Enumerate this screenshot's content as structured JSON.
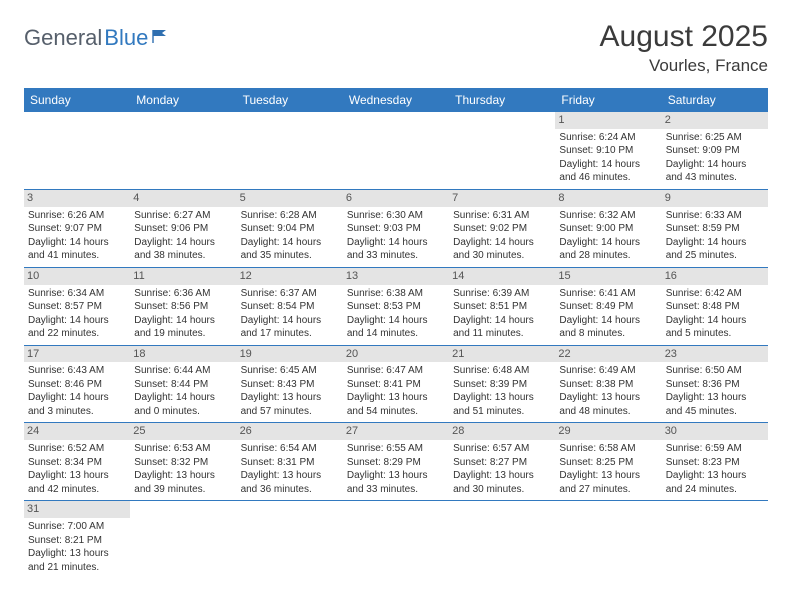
{
  "logo": {
    "general": "General",
    "blue": "Blue"
  },
  "title": "August 2025",
  "location": "Vourles, France",
  "colors": {
    "header_bg": "#3279bf",
    "header_text": "#ffffff",
    "daynum_bg": "#e4e4e4",
    "border": "#3279bf"
  },
  "weekdays": [
    "Sunday",
    "Monday",
    "Tuesday",
    "Wednesday",
    "Thursday",
    "Friday",
    "Saturday"
  ],
  "weeks": [
    [
      null,
      null,
      null,
      null,
      null,
      {
        "n": "1",
        "sr": "Sunrise: 6:24 AM",
        "ss": "Sunset: 9:10 PM",
        "d1": "Daylight: 14 hours",
        "d2": "and 46 minutes."
      },
      {
        "n": "2",
        "sr": "Sunrise: 6:25 AM",
        "ss": "Sunset: 9:09 PM",
        "d1": "Daylight: 14 hours",
        "d2": "and 43 minutes."
      }
    ],
    [
      {
        "n": "3",
        "sr": "Sunrise: 6:26 AM",
        "ss": "Sunset: 9:07 PM",
        "d1": "Daylight: 14 hours",
        "d2": "and 41 minutes."
      },
      {
        "n": "4",
        "sr": "Sunrise: 6:27 AM",
        "ss": "Sunset: 9:06 PM",
        "d1": "Daylight: 14 hours",
        "d2": "and 38 minutes."
      },
      {
        "n": "5",
        "sr": "Sunrise: 6:28 AM",
        "ss": "Sunset: 9:04 PM",
        "d1": "Daylight: 14 hours",
        "d2": "and 35 minutes."
      },
      {
        "n": "6",
        "sr": "Sunrise: 6:30 AM",
        "ss": "Sunset: 9:03 PM",
        "d1": "Daylight: 14 hours",
        "d2": "and 33 minutes."
      },
      {
        "n": "7",
        "sr": "Sunrise: 6:31 AM",
        "ss": "Sunset: 9:02 PM",
        "d1": "Daylight: 14 hours",
        "d2": "and 30 minutes."
      },
      {
        "n": "8",
        "sr": "Sunrise: 6:32 AM",
        "ss": "Sunset: 9:00 PM",
        "d1": "Daylight: 14 hours",
        "d2": "and 28 minutes."
      },
      {
        "n": "9",
        "sr": "Sunrise: 6:33 AM",
        "ss": "Sunset: 8:59 PM",
        "d1": "Daylight: 14 hours",
        "d2": "and 25 minutes."
      }
    ],
    [
      {
        "n": "10",
        "sr": "Sunrise: 6:34 AM",
        "ss": "Sunset: 8:57 PM",
        "d1": "Daylight: 14 hours",
        "d2": "and 22 minutes."
      },
      {
        "n": "11",
        "sr": "Sunrise: 6:36 AM",
        "ss": "Sunset: 8:56 PM",
        "d1": "Daylight: 14 hours",
        "d2": "and 19 minutes."
      },
      {
        "n": "12",
        "sr": "Sunrise: 6:37 AM",
        "ss": "Sunset: 8:54 PM",
        "d1": "Daylight: 14 hours",
        "d2": "and 17 minutes."
      },
      {
        "n": "13",
        "sr": "Sunrise: 6:38 AM",
        "ss": "Sunset: 8:53 PM",
        "d1": "Daylight: 14 hours",
        "d2": "and 14 minutes."
      },
      {
        "n": "14",
        "sr": "Sunrise: 6:39 AM",
        "ss": "Sunset: 8:51 PM",
        "d1": "Daylight: 14 hours",
        "d2": "and 11 minutes."
      },
      {
        "n": "15",
        "sr": "Sunrise: 6:41 AM",
        "ss": "Sunset: 8:49 PM",
        "d1": "Daylight: 14 hours",
        "d2": "and 8 minutes."
      },
      {
        "n": "16",
        "sr": "Sunrise: 6:42 AM",
        "ss": "Sunset: 8:48 PM",
        "d1": "Daylight: 14 hours",
        "d2": "and 5 minutes."
      }
    ],
    [
      {
        "n": "17",
        "sr": "Sunrise: 6:43 AM",
        "ss": "Sunset: 8:46 PM",
        "d1": "Daylight: 14 hours",
        "d2": "and 3 minutes."
      },
      {
        "n": "18",
        "sr": "Sunrise: 6:44 AM",
        "ss": "Sunset: 8:44 PM",
        "d1": "Daylight: 14 hours",
        "d2": "and 0 minutes."
      },
      {
        "n": "19",
        "sr": "Sunrise: 6:45 AM",
        "ss": "Sunset: 8:43 PM",
        "d1": "Daylight: 13 hours",
        "d2": "and 57 minutes."
      },
      {
        "n": "20",
        "sr": "Sunrise: 6:47 AM",
        "ss": "Sunset: 8:41 PM",
        "d1": "Daylight: 13 hours",
        "d2": "and 54 minutes."
      },
      {
        "n": "21",
        "sr": "Sunrise: 6:48 AM",
        "ss": "Sunset: 8:39 PM",
        "d1": "Daylight: 13 hours",
        "d2": "and 51 minutes."
      },
      {
        "n": "22",
        "sr": "Sunrise: 6:49 AM",
        "ss": "Sunset: 8:38 PM",
        "d1": "Daylight: 13 hours",
        "d2": "and 48 minutes."
      },
      {
        "n": "23",
        "sr": "Sunrise: 6:50 AM",
        "ss": "Sunset: 8:36 PM",
        "d1": "Daylight: 13 hours",
        "d2": "and 45 minutes."
      }
    ],
    [
      {
        "n": "24",
        "sr": "Sunrise: 6:52 AM",
        "ss": "Sunset: 8:34 PM",
        "d1": "Daylight: 13 hours",
        "d2": "and 42 minutes."
      },
      {
        "n": "25",
        "sr": "Sunrise: 6:53 AM",
        "ss": "Sunset: 8:32 PM",
        "d1": "Daylight: 13 hours",
        "d2": "and 39 minutes."
      },
      {
        "n": "26",
        "sr": "Sunrise: 6:54 AM",
        "ss": "Sunset: 8:31 PM",
        "d1": "Daylight: 13 hours",
        "d2": "and 36 minutes."
      },
      {
        "n": "27",
        "sr": "Sunrise: 6:55 AM",
        "ss": "Sunset: 8:29 PM",
        "d1": "Daylight: 13 hours",
        "d2": "and 33 minutes."
      },
      {
        "n": "28",
        "sr": "Sunrise: 6:57 AM",
        "ss": "Sunset: 8:27 PM",
        "d1": "Daylight: 13 hours",
        "d2": "and 30 minutes."
      },
      {
        "n": "29",
        "sr": "Sunrise: 6:58 AM",
        "ss": "Sunset: 8:25 PM",
        "d1": "Daylight: 13 hours",
        "d2": "and 27 minutes."
      },
      {
        "n": "30",
        "sr": "Sunrise: 6:59 AM",
        "ss": "Sunset: 8:23 PM",
        "d1": "Daylight: 13 hours",
        "d2": "and 24 minutes."
      }
    ],
    [
      {
        "n": "31",
        "sr": "Sunrise: 7:00 AM",
        "ss": "Sunset: 8:21 PM",
        "d1": "Daylight: 13 hours",
        "d2": "and 21 minutes."
      },
      null,
      null,
      null,
      null,
      null,
      null
    ]
  ]
}
